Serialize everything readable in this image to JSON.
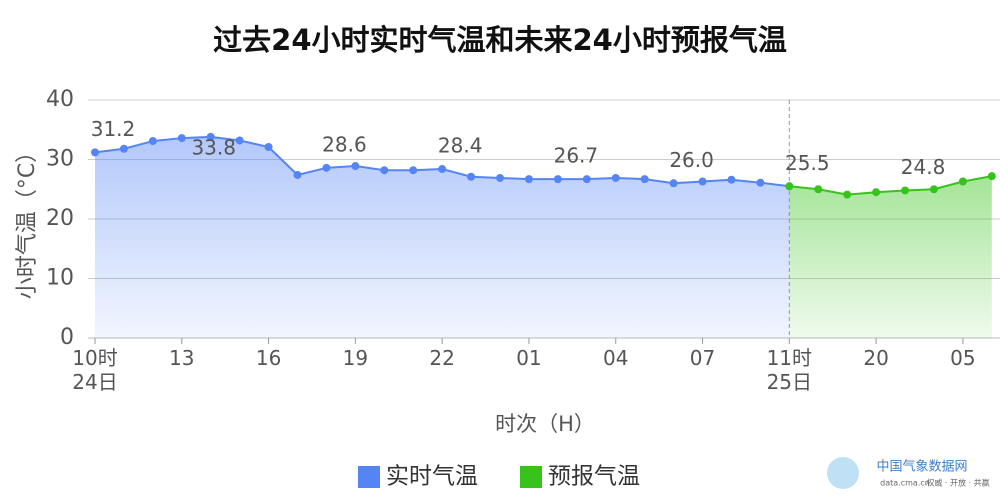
{
  "chart_data": {
    "type": "line",
    "title": "过去24小时实时气温和未来24小时预报气温",
    "ylabel": "小时气温（°C）",
    "xlabel": "时次（H）",
    "categories": [
      "10时\n24日",
      null,
      null,
      "13",
      null,
      null,
      "16",
      null,
      null,
      "19",
      null,
      null,
      "22",
      null,
      null,
      "01",
      null,
      null,
      "04",
      null,
      null,
      "07",
      null,
      null,
      "11时\n25日",
      null,
      null,
      "20",
      null,
      null,
      "05",
      null
    ],
    "series": [
      {
        "name": "实时气温",
        "color": "#5585f5",
        "values": [
          31.2,
          31.8,
          33.1,
          33.6,
          33.8,
          33.2,
          32.1,
          27.4,
          28.6,
          28.9,
          28.2,
          28.2,
          28.4,
          27.1,
          26.9,
          26.7,
          26.7,
          26.7,
          26.9,
          26.7,
          26.0,
          26.3,
          26.6,
          26.1,
          25.5,
          null,
          null,
          null,
          null,
          null,
          null,
          null
        ],
        "value_labels": [
          "31.2",
          null,
          null,
          null,
          "33.8",
          null,
          null,
          null,
          "28.6",
          null,
          null,
          null,
          "28.4",
          null,
          null,
          null,
          "26.7",
          null,
          null,
          null,
          "26.0",
          null,
          null,
          null,
          "25.5",
          null,
          null,
          null,
          null,
          null,
          null,
          null
        ]
      },
      {
        "name": "预报气温",
        "color": "#36c41a",
        "values": [
          null,
          null,
          null,
          null,
          null,
          null,
          null,
          null,
          null,
          null,
          null,
          null,
          null,
          null,
          null,
          null,
          null,
          null,
          null,
          null,
          null,
          null,
          null,
          null,
          25.5,
          25.0,
          24.1,
          24.5,
          24.8,
          25.0,
          26.3,
          27.2
        ],
        "value_labels": [
          null,
          null,
          null,
          null,
          null,
          null,
          null,
          null,
          null,
          null,
          null,
          null,
          null,
          null,
          null,
          null,
          null,
          null,
          null,
          null,
          null,
          null,
          null,
          null,
          null,
          null,
          null,
          null,
          "24.8",
          null,
          null,
          null
        ]
      }
    ],
    "ylim": [
      0,
      40
    ],
    "yticks": [
      0,
      10,
      20,
      30,
      40
    ],
    "grid": true,
    "watermark": {
      "name": "中国气象数据网",
      "url": "data.cma.cn",
      "slogan": "权威 · 开放 · 共赢"
    }
  }
}
